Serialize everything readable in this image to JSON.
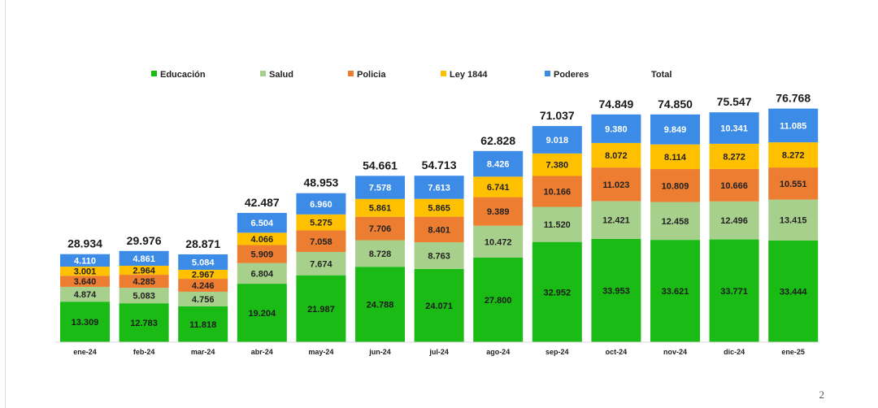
{
  "page_number": "2",
  "chart_data": {
    "type": "bar",
    "stacked": true,
    "title": "",
    "xlabel": "",
    "ylabel": "",
    "legend_placement": "top",
    "grid": false,
    "categories": [
      "ene-24",
      "feb-24",
      "mar-24",
      "abr-24",
      "may-24",
      "jun-24",
      "jul-24",
      "ago-24",
      "sep-24",
      "oct-24",
      "nov-24",
      "dic-24",
      "ene-25"
    ],
    "series": [
      {
        "name": "Educación",
        "color": "#1bbb16",
        "values": [
          13309,
          12783,
          11818,
          19204,
          21987,
          24788,
          24071,
          27800,
          32952,
          33953,
          33621,
          33771,
          33444
        ],
        "labels": [
          "13.309",
          "12.783",
          "11.818",
          "19.204",
          "21.987",
          "24.788",
          "24.071",
          "27.800",
          "32.952",
          "33.953",
          "33.621",
          "33.771",
          "33.444"
        ]
      },
      {
        "name": "Salud",
        "color": "#a8d08d",
        "values": [
          4874,
          5083,
          4756,
          6804,
          7674,
          8728,
          8763,
          10472,
          11520,
          12421,
          12458,
          12496,
          13415
        ],
        "labels": [
          "4.874",
          "5.083",
          "4.756",
          "6.804",
          "7.674",
          "8.728",
          "8.763",
          "10.472",
          "11.520",
          "12.421",
          "12.458",
          "12.496",
          "13.415"
        ]
      },
      {
        "name": "Policia",
        "color": "#ed7d31",
        "values": [
          3640,
          4285,
          4246,
          5909,
          7058,
          7706,
          8401,
          9389,
          10166,
          11023,
          10809,
          10666,
          10551
        ],
        "labels": [
          "3.640",
          "4.285",
          "4.246",
          "5.909",
          "7.058",
          "7.706",
          "8.401",
          "9.389",
          "10.166",
          "11.023",
          "10.809",
          "10.666",
          "10.551"
        ]
      },
      {
        "name": "Ley 1844",
        "color": "#ffc000",
        "values": [
          3001,
          2964,
          2967,
          4066,
          5275,
          5861,
          5865,
          6741,
          7380,
          8072,
          8114,
          8272,
          8272
        ],
        "labels": [
          "3.001",
          "2.964",
          "2.967",
          "4.066",
          "5.275",
          "5.861",
          "5.865",
          "6.741",
          "7.380",
          "8.072",
          "8.114",
          "8.272",
          "8.272"
        ]
      },
      {
        "name": "Poderes",
        "color": "#3c8ce7",
        "values": [
          4110,
          4861,
          5084,
          6504,
          6960,
          7578,
          7613,
          8426,
          9018,
          9380,
          9849,
          10341,
          11085
        ],
        "labels": [
          "4.110",
          "4.861",
          "5.084",
          "6.504",
          "6.960",
          "7.578",
          "7.613",
          "8.426",
          "9.018",
          "9.380",
          "9.849",
          "10.341",
          "11.085"
        ]
      }
    ],
    "totals": {
      "name": "Total",
      "values": [
        28934,
        29976,
        28871,
        42487,
        48953,
        54661,
        54713,
        62828,
        71037,
        74849,
        74850,
        75547,
        76768
      ],
      "labels": [
        "28.934",
        "29.976",
        "28.871",
        "42.487",
        "48.953",
        "54.661",
        "54.713",
        "62.828",
        "71.037",
        "74.849",
        "74.850",
        "75.547",
        "76.768"
      ]
    },
    "ylim": [
      0,
      78000
    ]
  }
}
